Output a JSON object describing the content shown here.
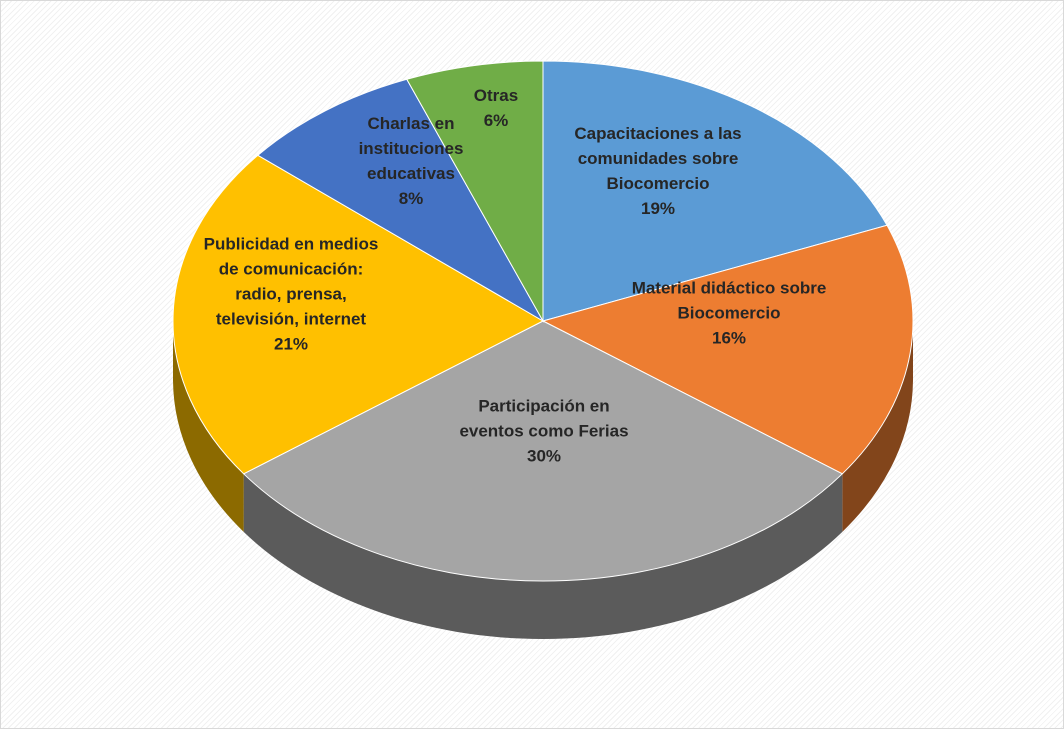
{
  "chart_data": {
    "type": "pie",
    "categories": [
      "Capacitaciones a las comunidades sobre Biocomercio",
      "Material didáctico sobre Biocomercio",
      "Participación en eventos como Ferias",
      "Publicidad en medios de comunicación: radio, prensa, televisión, internet",
      "Charlas en instituciones educativas",
      "Otras"
    ],
    "values": [
      19,
      16,
      30,
      21,
      8,
      6
    ],
    "value_labels": [
      "19%",
      "16%",
      "30%",
      "21%",
      "8%",
      "6%"
    ],
    "colors": [
      "#5b9bd5",
      "#ed7d31",
      "#a5a5a5",
      "#ffc000",
      "#4472c4",
      "#70ad47"
    ]
  }
}
